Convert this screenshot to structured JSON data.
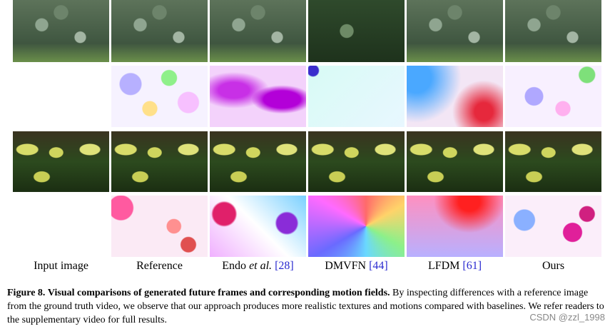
{
  "columns": [
    {
      "text": "Input image"
    },
    {
      "text": "Reference"
    },
    {
      "text": "Endo",
      "italic": "et al.",
      "citation": "[28]"
    },
    {
      "text": "DMVFN",
      "citation": "[44]"
    },
    {
      "text": "LFDM",
      "citation": "[61]"
    },
    {
      "text": "Ours"
    }
  ],
  "caption": {
    "label": "Figure 8.",
    "bold": "Visual comparisons of generated future frames and corresponding motion fields.",
    "text": "By inspecting differences with a reference image from the ground truth video, we observe that our approach produces more realistic textures and motions compared with baselines. We refer readers to the supplementary video for full results."
  },
  "watermark": "CSDN @zzl_1998"
}
